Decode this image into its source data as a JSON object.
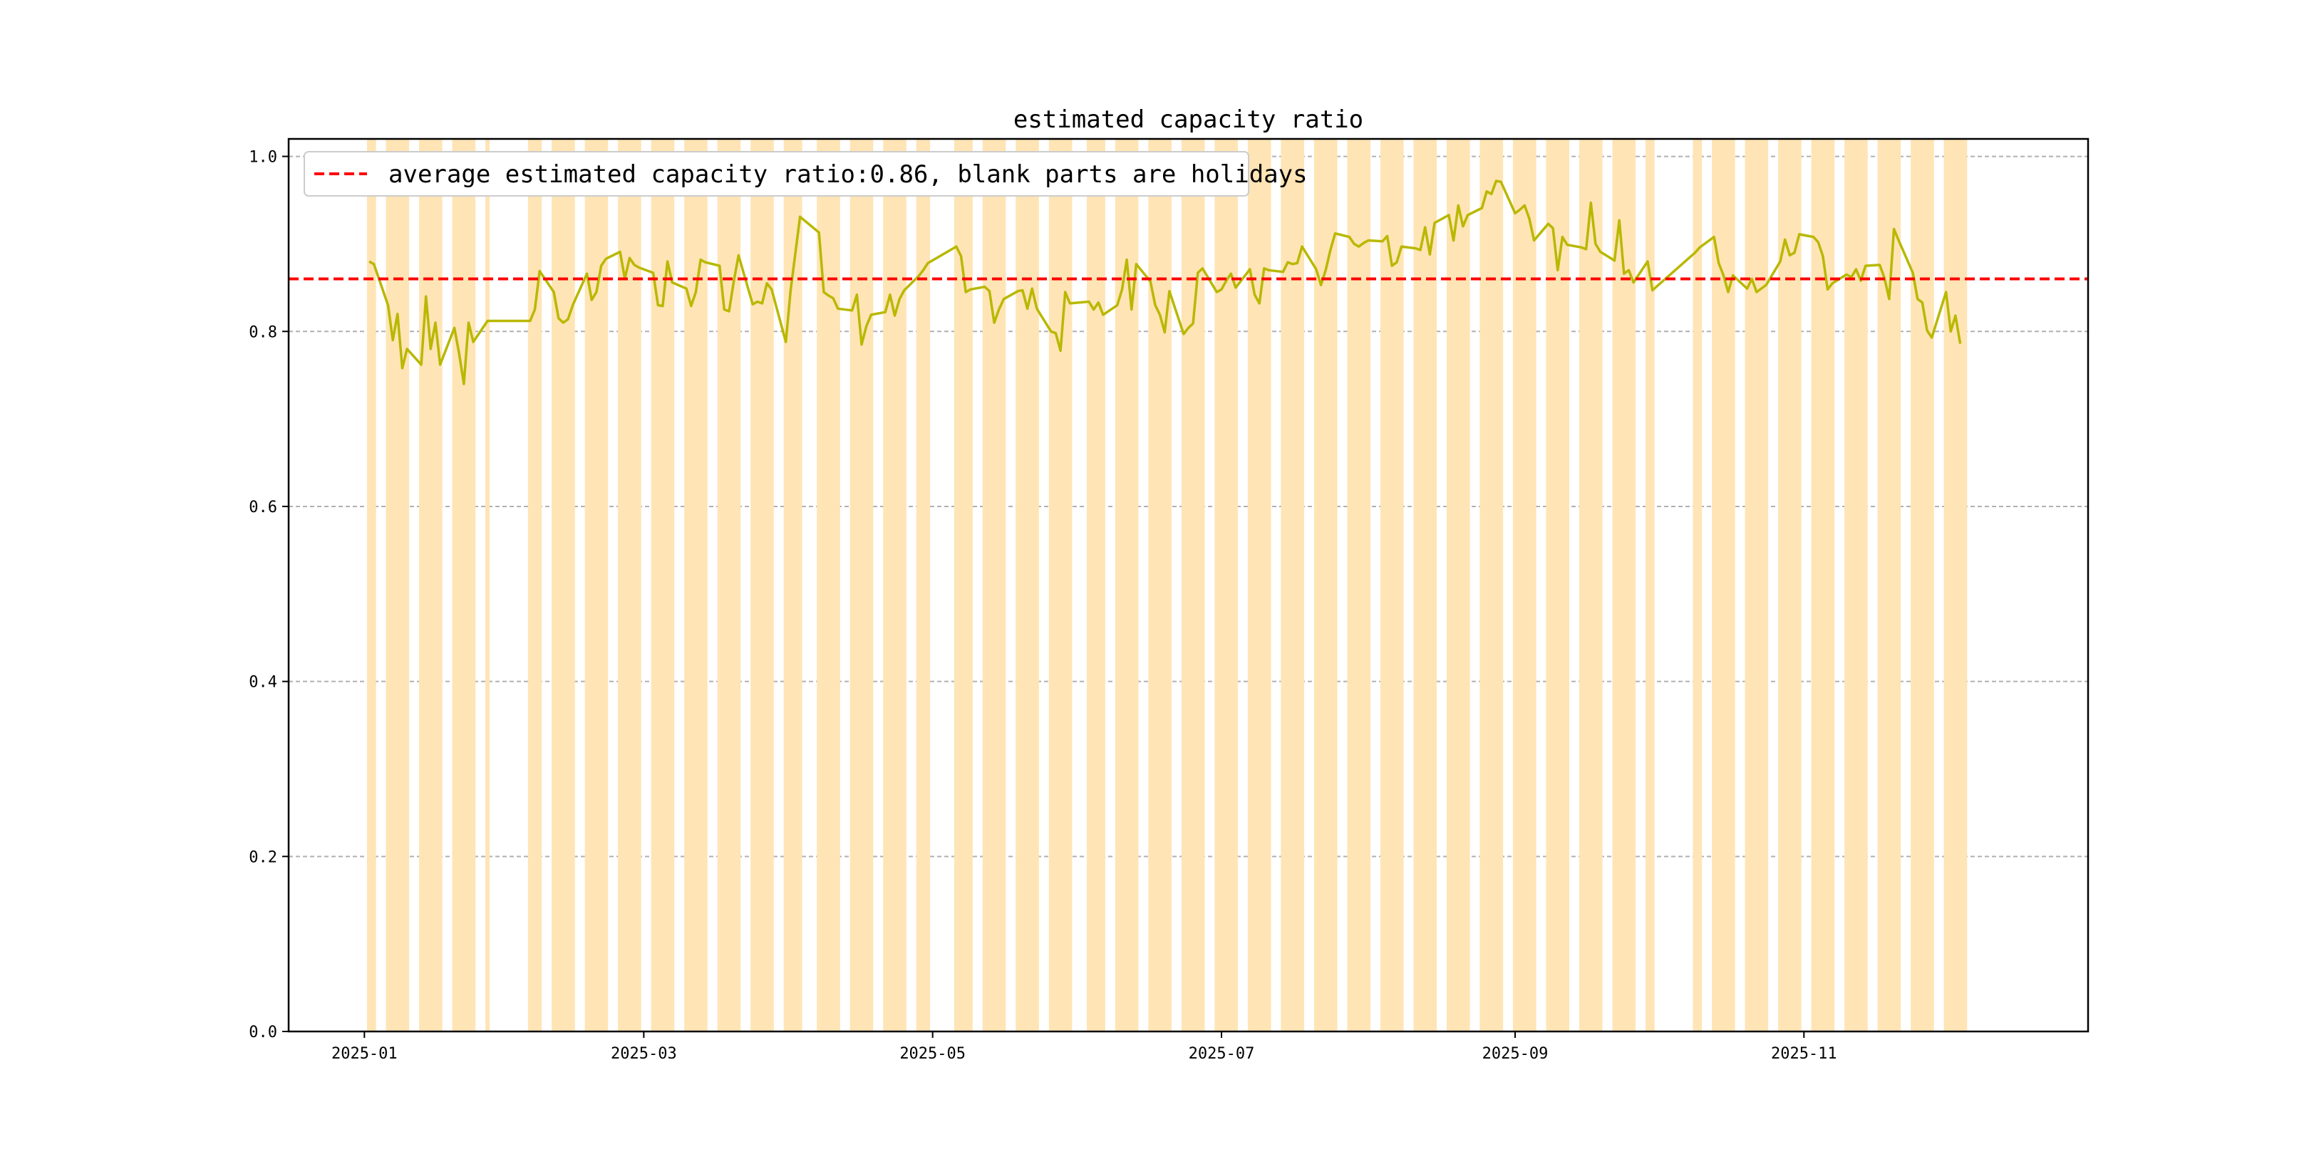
{
  "chart_data": {
    "type": "bar",
    "title": "estimated capacity ratio",
    "xlabel": "",
    "ylabel": "",
    "ylim": [
      0,
      1.02
    ],
    "xlim": [
      "2024-12-16",
      "2025-12-31"
    ],
    "grid": {
      "y": true,
      "x": false,
      "style": "dashed"
    },
    "legend_position": "top-left",
    "average": {
      "value": 0.86,
      "label": "average estimated capacity ratio:0.86, blank parts are holidays",
      "color": "#ff0000"
    },
    "bar_color": "#ffe4b5",
    "line_color": "#b8b800",
    "x_ticks": [
      "2025-01",
      "2025-03",
      "2025-05",
      "2025-07",
      "2025-09",
      "2025-11"
    ],
    "y_ticks": [
      "0.0",
      "0.2",
      "0.4",
      "0.6",
      "0.8",
      "1.0"
    ],
    "working_periods": [
      [
        "2025-01-02",
        "2025-01-03"
      ],
      [
        "2025-01-06",
        "2025-01-10"
      ],
      [
        "2025-01-13",
        "2025-01-17"
      ],
      [
        "2025-01-20",
        "2025-01-24"
      ],
      [
        "2025-01-27",
        "2025-01-27"
      ],
      [
        "2025-02-05",
        "2025-02-07"
      ],
      [
        "2025-02-10",
        "2025-02-14"
      ],
      [
        "2025-02-17",
        "2025-02-21"
      ],
      [
        "2025-02-24",
        "2025-02-28"
      ],
      [
        "2025-03-03",
        "2025-03-07"
      ],
      [
        "2025-03-10",
        "2025-03-14"
      ],
      [
        "2025-03-17",
        "2025-03-21"
      ],
      [
        "2025-03-24",
        "2025-03-28"
      ],
      [
        "2025-03-31",
        "2025-04-03"
      ],
      [
        "2025-04-07",
        "2025-04-11"
      ],
      [
        "2025-04-14",
        "2025-04-18"
      ],
      [
        "2025-04-21",
        "2025-04-25"
      ],
      [
        "2025-04-28",
        "2025-04-30"
      ],
      [
        "2025-05-06",
        "2025-05-09"
      ],
      [
        "2025-05-12",
        "2025-05-16"
      ],
      [
        "2025-05-19",
        "2025-05-23"
      ],
      [
        "2025-05-26",
        "2025-05-30"
      ],
      [
        "2025-06-03",
        "2025-06-06"
      ],
      [
        "2025-06-09",
        "2025-06-13"
      ],
      [
        "2025-06-16",
        "2025-06-20"
      ],
      [
        "2025-06-23",
        "2025-06-27"
      ],
      [
        "2025-06-30",
        "2025-07-04"
      ],
      [
        "2025-07-07",
        "2025-07-11"
      ],
      [
        "2025-07-14",
        "2025-07-18"
      ],
      [
        "2025-07-21",
        "2025-07-25"
      ],
      [
        "2025-07-28",
        "2025-08-01"
      ],
      [
        "2025-08-04",
        "2025-08-08"
      ],
      [
        "2025-08-11",
        "2025-08-15"
      ],
      [
        "2025-08-18",
        "2025-08-22"
      ],
      [
        "2025-08-25",
        "2025-08-29"
      ],
      [
        "2025-09-01",
        "2025-09-05"
      ],
      [
        "2025-09-08",
        "2025-09-12"
      ],
      [
        "2025-09-15",
        "2025-09-19"
      ],
      [
        "2025-09-22",
        "2025-09-26"
      ],
      [
        "2025-09-29",
        "2025-09-30"
      ],
      [
        "2025-10-09",
        "2025-10-10"
      ],
      [
        "2025-10-13",
        "2025-10-17"
      ],
      [
        "2025-10-20",
        "2025-10-24"
      ],
      [
        "2025-10-27",
        "2025-10-31"
      ],
      [
        "2025-11-03",
        "2025-11-07"
      ],
      [
        "2025-11-10",
        "2025-11-14"
      ],
      [
        "2025-11-17",
        "2025-11-21"
      ],
      [
        "2025-11-24",
        "2025-11-28"
      ],
      [
        "2025-12-01",
        "2025-12-05"
      ]
    ],
    "series": [
      {
        "values_x": [
          "2025-01-02",
          "2025-01-03",
          "2025-01-06",
          "2025-01-07",
          "2025-01-08",
          "2025-01-09",
          "2025-01-10",
          "2025-01-13",
          "2025-01-14",
          "2025-01-15",
          "2025-01-16",
          "2025-01-17",
          "2025-01-20",
          "2025-01-21",
          "2025-01-22",
          "2025-01-23",
          "2025-01-24",
          "2025-01-27",
          "2025-02-05",
          "2025-02-06",
          "2025-02-07",
          "2025-02-10",
          "2025-02-11",
          "2025-02-12",
          "2025-02-13",
          "2025-02-14",
          "2025-02-17",
          "2025-02-18",
          "2025-02-19",
          "2025-02-20",
          "2025-02-21",
          "2025-02-24",
          "2025-02-25",
          "2025-02-26",
          "2025-02-27",
          "2025-02-28",
          "2025-03-03",
          "2025-03-04",
          "2025-03-05",
          "2025-03-06",
          "2025-03-07",
          "2025-03-10",
          "2025-03-11",
          "2025-03-12",
          "2025-03-13",
          "2025-03-14",
          "2025-03-17",
          "2025-03-18",
          "2025-03-19",
          "2025-03-20",
          "2025-03-21",
          "2025-03-24",
          "2025-03-25",
          "2025-03-26",
          "2025-03-27",
          "2025-03-28",
          "2025-03-31",
          "2025-04-01",
          "2025-04-02",
          "2025-04-03",
          "2025-04-07",
          "2025-04-08",
          "2025-04-09",
          "2025-04-10",
          "2025-04-11",
          "2025-04-14",
          "2025-04-15",
          "2025-04-16",
          "2025-04-17",
          "2025-04-18",
          "2025-04-21",
          "2025-04-22",
          "2025-04-23",
          "2025-04-24",
          "2025-04-25",
          "2025-04-28",
          "2025-04-29",
          "2025-04-30",
          "2025-05-06",
          "2025-05-07",
          "2025-05-08",
          "2025-05-09",
          "2025-05-12",
          "2025-05-13",
          "2025-05-14",
          "2025-05-15",
          "2025-05-16",
          "2025-05-19",
          "2025-05-20",
          "2025-05-21",
          "2025-05-22",
          "2025-05-23",
          "2025-05-26",
          "2025-05-27",
          "2025-05-28",
          "2025-05-29",
          "2025-05-30",
          "2025-06-03",
          "2025-06-04",
          "2025-06-05",
          "2025-06-06",
          "2025-06-09",
          "2025-06-10",
          "2025-06-11",
          "2025-06-12",
          "2025-06-13",
          "2025-06-16",
          "2025-06-17",
          "2025-06-18",
          "2025-06-19",
          "2025-06-20",
          "2025-06-23",
          "2025-06-24",
          "2025-06-25",
          "2025-06-26",
          "2025-06-27",
          "2025-06-30",
          "2025-07-01",
          "2025-07-02",
          "2025-07-03",
          "2025-07-04",
          "2025-07-07",
          "2025-07-08",
          "2025-07-09",
          "2025-07-10",
          "2025-07-11",
          "2025-07-14",
          "2025-07-15",
          "2025-07-16",
          "2025-07-17",
          "2025-07-18",
          "2025-07-21",
          "2025-07-22",
          "2025-07-23",
          "2025-07-24",
          "2025-07-25",
          "2025-07-28",
          "2025-07-29",
          "2025-07-30",
          "2025-07-31",
          "2025-08-01",
          "2025-08-04",
          "2025-08-05",
          "2025-08-06",
          "2025-08-07",
          "2025-08-08",
          "2025-08-11",
          "2025-08-12",
          "2025-08-13",
          "2025-08-14",
          "2025-08-15",
          "2025-08-18",
          "2025-08-19",
          "2025-08-20",
          "2025-08-21",
          "2025-08-22",
          "2025-08-25",
          "2025-08-26",
          "2025-08-27",
          "2025-08-28",
          "2025-08-29",
          "2025-09-01",
          "2025-09-02",
          "2025-09-03",
          "2025-09-04",
          "2025-09-05",
          "2025-09-08",
          "2025-09-09",
          "2025-09-10",
          "2025-09-11",
          "2025-09-12",
          "2025-09-15",
          "2025-09-16",
          "2025-09-17",
          "2025-09-18",
          "2025-09-19",
          "2025-09-22",
          "2025-09-23",
          "2025-09-24",
          "2025-09-25",
          "2025-09-26",
          "2025-09-29",
          "2025-09-30",
          "2025-10-09",
          "2025-10-10",
          "2025-10-13",
          "2025-10-14",
          "2025-10-15",
          "2025-10-16",
          "2025-10-17",
          "2025-10-20",
          "2025-10-21",
          "2025-10-22",
          "2025-10-23",
          "2025-10-24",
          "2025-10-27",
          "2025-10-28",
          "2025-10-29",
          "2025-10-30",
          "2025-10-31",
          "2025-11-03",
          "2025-11-04",
          "2025-11-05",
          "2025-11-06",
          "2025-11-07",
          "2025-11-10",
          "2025-11-11",
          "2025-11-12",
          "2025-11-13",
          "2025-11-14",
          "2025-11-17",
          "2025-11-18",
          "2025-11-19",
          "2025-11-20",
          "2025-11-21",
          "2025-11-24",
          "2025-11-25",
          "2025-11-26",
          "2025-11-27",
          "2025-11-28",
          "2025-12-01",
          "2025-12-02",
          "2025-12-03",
          "2025-12-04",
          "2025-12-05"
        ],
        "values": [
          0.88,
          0.877,
          0.83,
          0.79,
          0.82,
          0.758,
          0.78,
          0.762,
          0.84,
          0.78,
          0.81,
          0.762,
          0.804,
          0.775,
          0.74,
          0.81,
          0.788,
          0.812,
          0.812,
          0.825,
          0.869,
          0.845,
          0.815,
          0.81,
          0.814,
          0.83,
          0.866,
          0.836,
          0.845,
          0.875,
          0.883,
          0.891,
          0.86,
          0.884,
          0.876,
          0.873,
          0.867,
          0.83,
          0.829,
          0.88,
          0.856,
          0.849,
          0.829,
          0.845,
          0.882,
          0.879,
          0.875,
          0.825,
          0.823,
          0.857,
          0.887,
          0.831,
          0.834,
          0.832,
          0.855,
          0.848,
          0.788,
          0.846,
          0.889,
          0.931,
          0.913,
          0.845,
          0.841,
          0.838,
          0.826,
          0.824,
          0.842,
          0.785,
          0.806,
          0.819,
          0.822,
          0.842,
          0.818,
          0.837,
          0.847,
          0.863,
          0.87,
          0.878,
          0.897,
          0.886,
          0.845,
          0.848,
          0.851,
          0.846,
          0.81,
          0.825,
          0.837,
          0.846,
          0.847,
          0.826,
          0.849,
          0.826,
          0.8,
          0.798,
          0.778,
          0.845,
          0.832,
          0.834,
          0.825,
          0.833,
          0.819,
          0.83,
          0.848,
          0.882,
          0.825,
          0.877,
          0.857,
          0.83,
          0.819,
          0.799,
          0.846,
          0.797,
          0.804,
          0.809,
          0.867,
          0.872,
          0.845,
          0.848,
          0.858,
          0.866,
          0.85,
          0.871,
          0.842,
          0.832,
          0.872,
          0.87,
          0.868,
          0.879,
          0.877,
          0.878,
          0.897,
          0.871,
          0.853,
          0.87,
          0.893,
          0.912,
          0.908,
          0.9,
          0.897,
          0.901,
          0.904,
          0.903,
          0.909,
          0.875,
          0.879,
          0.897,
          0.895,
          0.893,
          0.919,
          0.888,
          0.924,
          0.933,
          0.904,
          0.944,
          0.92,
          0.933,
          0.941,
          0.96,
          0.957,
          0.972,
          0.971,
          0.935,
          0.939,
          0.944,
          0.929,
          0.904,
          0.923,
          0.918,
          0.87,
          0.908,
          0.899,
          0.896,
          0.894,
          0.947,
          0.9,
          0.891,
          0.881,
          0.927,
          0.866,
          0.87,
          0.856,
          0.88,
          0.847,
          0.89,
          0.896,
          0.908,
          0.878,
          0.864,
          0.845,
          0.864,
          0.849,
          0.86,
          0.845,
          0.849,
          0.853,
          0.88,
          0.905,
          0.887,
          0.89,
          0.911,
          0.908,
          0.902,
          0.886,
          0.848,
          0.855,
          0.865,
          0.862,
          0.871,
          0.858,
          0.875,
          0.876,
          0.861,
          0.837,
          0.917,
          0.904,
          0.867,
          0.837,
          0.833,
          0.801,
          0.793,
          0.845,
          0.8,
          0.818,
          0.786
        ]
      }
    ]
  }
}
